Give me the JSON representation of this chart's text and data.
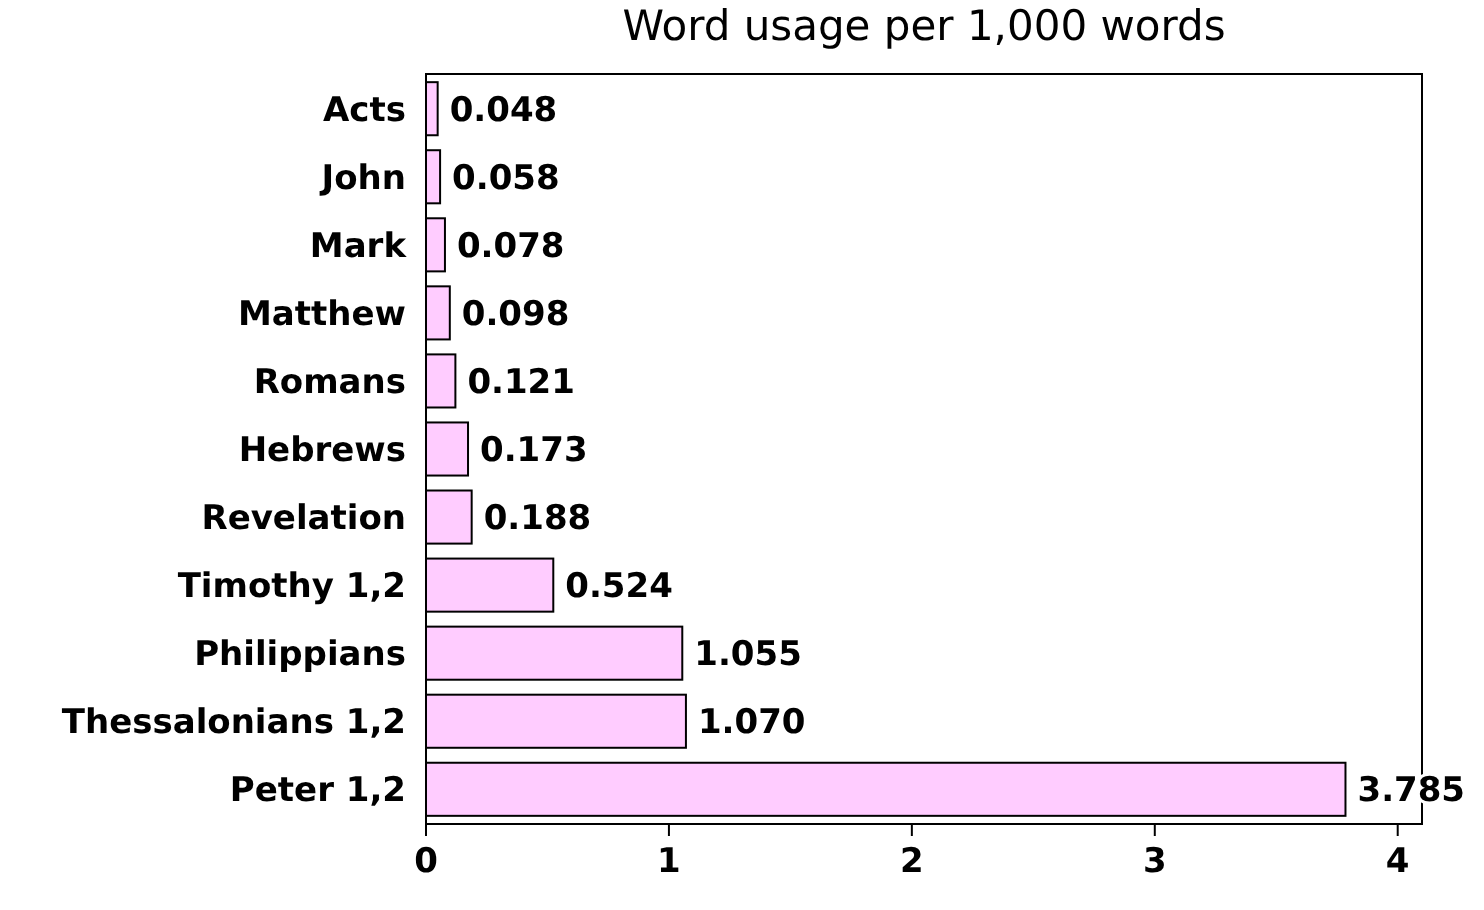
{
  "chart_data": {
    "type": "bar",
    "orientation": "horizontal",
    "title": "Word usage per 1,000 words",
    "categories": [
      "Acts",
      "John",
      "Mark",
      "Matthew",
      "Romans",
      "Hebrews",
      "Revelation",
      "Timothy 1,2",
      "Philippians",
      "Thessalonians 1,2",
      "Peter 1,2"
    ],
    "values": [
      0.048,
      0.058,
      0.078,
      0.098,
      0.121,
      0.173,
      0.188,
      0.524,
      1.055,
      1.07,
      3.785
    ],
    "value_labels": [
      "0.048",
      "0.058",
      "0.078",
      "0.098",
      "0.121",
      "0.173",
      "0.188",
      "0.524",
      "1.055",
      "1.070",
      "3.785"
    ],
    "color": "#ffccff",
    "xlim": [
      0,
      4.1
    ],
    "xticks": [
      0,
      1,
      2,
      3,
      4
    ],
    "grid": false
  }
}
